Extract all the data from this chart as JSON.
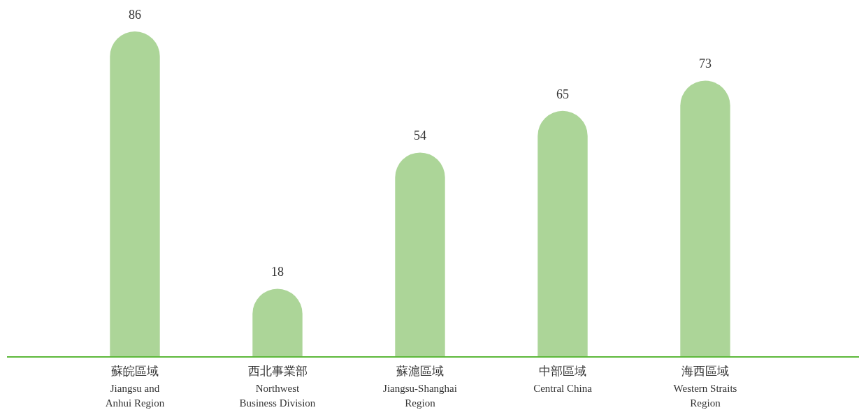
{
  "chart_data": {
    "type": "bar",
    "categories": [
      "蘇皖區域\nJiangsu and\nAnhui Region",
      "西北事業部\nNorthwest\nBusiness Division",
      "蘇滬區域\nJiangsu-Shanghai\nRegion",
      "中部區域\nCentral China",
      "海西區域\nWestern Straits\nRegion"
    ],
    "values": [
      86,
      18,
      54,
      65,
      73
    ],
    "color": "#acd598",
    "data_labels": true
  }
}
